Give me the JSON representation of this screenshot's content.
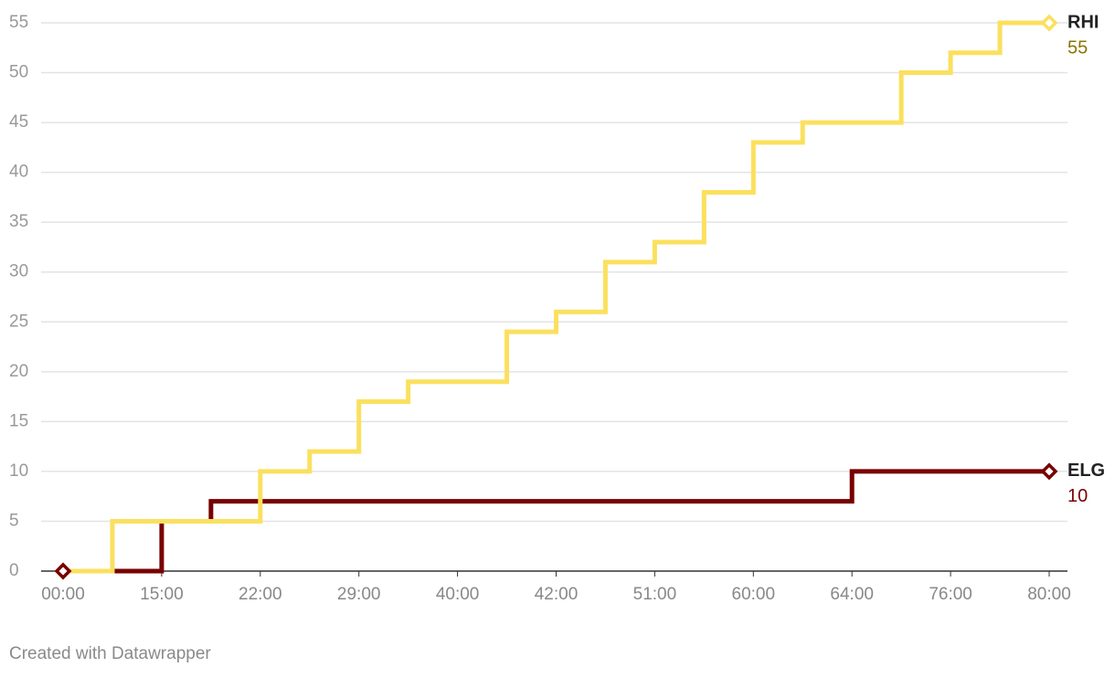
{
  "chart_data": {
    "type": "line",
    "step": "after",
    "categories": [
      "00:00",
      null,
      "15:00",
      null,
      "22:00",
      null,
      "29:00",
      null,
      "40:00",
      null,
      "42:00",
      null,
      "51:00",
      null,
      "60:00",
      null,
      "64:00",
      null,
      "76:00",
      null,
      "80:00"
    ],
    "series": [
      {
        "name": "RHI",
        "color": "#fbe05f",
        "label_color": "#8c7500",
        "values": [
          0,
          5,
          5,
          5,
          10,
          12,
          17,
          19,
          19,
          24,
          26,
          31,
          33,
          38,
          43,
          45,
          45,
          50,
          52,
          55,
          55
        ]
      },
      {
        "name": "ELG",
        "color": "#780000",
        "label_color": "#780000",
        "values": [
          0,
          0,
          5,
          7,
          7,
          7,
          7,
          7,
          7,
          7,
          7,
          7,
          7,
          7,
          7,
          7,
          10,
          10,
          10,
          10,
          10
        ]
      }
    ],
    "ylim": [
      0,
      55
    ],
    "yticks": [
      0,
      5,
      10,
      15,
      20,
      25,
      30,
      35,
      40,
      45,
      50,
      55
    ],
    "grid": true,
    "footer": "Created with Datawrapper"
  }
}
